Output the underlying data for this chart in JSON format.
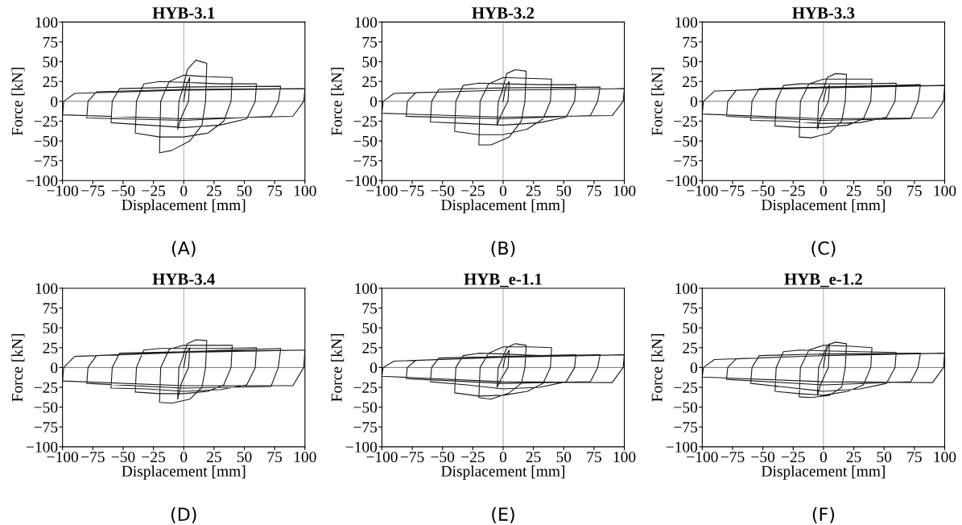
{
  "chart_data": [
    {
      "type": "line",
      "title": "HYB-3.1",
      "xlabel": "Displacement [mm]",
      "ylabel": "Force [kN]",
      "annotations": [
        "(A)"
      ],
      "xlim": [
        -100,
        100
      ],
      "ylim": [
        -100,
        100
      ],
      "xticks": [
        {
          "value": -100,
          "label": "−100"
        },
        {
          "value": -75,
          "label": "−75"
        },
        {
          "value": -50,
          "label": "−50"
        },
        {
          "value": -25,
          "label": "−25"
        },
        0,
        25,
        50,
        75,
        100
      ],
      "yticks": [
        {
          "value": -100,
          "label": "−100"
        },
        {
          "value": -75,
          "label": "−75"
        },
        {
          "value": -50,
          "label": "−50"
        },
        {
          "value": -25,
          "label": "−25"
        },
        0,
        25,
        50,
        75,
        100
      ],
      "grid": false,
      "marker": "none",
      "line_style": "solid",
      "ref_lines": [
        {
          "axis": "x",
          "value": 0,
          "color": "#999999"
        },
        {
          "axis": "y",
          "value": 0,
          "color": "#555555"
        }
      ],
      "x": [
        0,
        2,
        5,
        4,
        -2,
        -5,
        -4,
        -1,
        3,
        10,
        19,
        18,
        15,
        5,
        -10,
        -20,
        -19,
        -12,
        0,
        20,
        40,
        39,
        33,
        20,
        0,
        -20,
        -40,
        -39,
        -33,
        -20,
        0,
        30,
        60,
        59,
        52,
        30,
        0,
        -30,
        -60,
        -59,
        -53,
        0,
        80,
        78,
        72,
        0,
        -80,
        -79,
        -72,
        0,
        100,
        99,
        90,
        0,
        -100,
        -99,
        -90,
        0,
        100
      ],
      "series": [
        {
          "color": "#1a1a1a",
          "values": [
            0,
            20,
            30,
            0,
            -20,
            -35,
            0,
            15,
            40,
            52,
            48,
            0,
            -30,
            -50,
            -62,
            -65,
            0,
            25,
            33,
            31,
            30,
            0,
            -25,
            -40,
            -45,
            -45,
            -40,
            0,
            22,
            25,
            24,
            22,
            22,
            0,
            -22,
            -30,
            -33,
            -30,
            -27,
            0,
            16,
            18,
            19,
            0,
            -19,
            -24,
            -21,
            0,
            12,
            15,
            16,
            0,
            -19,
            -22,
            -17,
            0,
            10,
            14,
            16
          ]
        }
      ]
    },
    {
      "type": "line",
      "title": "HYB-3.2",
      "xlabel": "Displacement [mm]",
      "ylabel": "Force [kN]",
      "annotations": [
        "(B)"
      ],
      "xlim": [
        -100,
        100
      ],
      "ylim": [
        -100,
        100
      ],
      "xticks": [
        {
          "value": -100,
          "label": "−100"
        },
        {
          "value": -75,
          "label": "−75"
        },
        {
          "value": -50,
          "label": "−50"
        },
        {
          "value": -25,
          "label": "−25"
        },
        0,
        25,
        50,
        75,
        100
      ],
      "yticks": [
        {
          "value": -100,
          "label": "−100"
        },
        {
          "value": -75,
          "label": "−75"
        },
        {
          "value": -50,
          "label": "−50"
        },
        {
          "value": -25,
          "label": "−25"
        },
        0,
        25,
        50,
        75,
        100
      ],
      "grid": false,
      "marker": "none",
      "line_style": "solid",
      "ref_lines": [
        {
          "axis": "x",
          "value": 0,
          "color": "#999999"
        },
        {
          "axis": "y",
          "value": 0,
          "color": "#555555"
        }
      ],
      "x": [
        0,
        2,
        5,
        4,
        -2,
        -5,
        -4,
        -1,
        3,
        10,
        19,
        18,
        15,
        5,
        -10,
        -20,
        -19,
        -12,
        0,
        20,
        40,
        39,
        33,
        20,
        0,
        -20,
        -40,
        -39,
        -33,
        -20,
        0,
        30,
        60,
        59,
        52,
        30,
        0,
        -30,
        -60,
        -59,
        -53,
        0,
        80,
        78,
        72,
        0,
        -80,
        -79,
        -72,
        0,
        100,
        99,
        90,
        0,
        -100,
        -99,
        -90,
        0,
        100
      ],
      "series": [
        {
          "color": "#1a1a1a",
          "values": [
            0,
            18,
            25,
            0,
            -18,
            -30,
            0,
            12,
            35,
            40,
            38,
            0,
            -25,
            -45,
            -55,
            -55,
            0,
            22,
            30,
            29,
            28,
            0,
            -22,
            -35,
            -42,
            -42,
            -38,
            0,
            20,
            23,
            22,
            21,
            21,
            0,
            -20,
            -27,
            -30,
            -28,
            -26,
            0,
            15,
            17,
            18,
            0,
            -18,
            -22,
            -19,
            0,
            11,
            14,
            16,
            0,
            -18,
            -20,
            -15,
            0,
            10,
            14,
            16
          ]
        }
      ]
    },
    {
      "type": "line",
      "title": "HYB-3.3",
      "xlabel": "Displacement [mm]",
      "ylabel": "Force [kN]",
      "annotations": [
        "(C)"
      ],
      "xlim": [
        -100,
        100
      ],
      "ylim": [
        -100,
        100
      ],
      "xticks": [
        {
          "value": -100,
          "label": "−100"
        },
        {
          "value": -75,
          "label": "−75"
        },
        {
          "value": -50,
          "label": "−50"
        },
        {
          "value": -25,
          "label": "−25"
        },
        0,
        25,
        50,
        75,
        100
      ],
      "yticks": [
        {
          "value": -100,
          "label": "−100"
        },
        {
          "value": -75,
          "label": "−75"
        },
        {
          "value": -50,
          "label": "−50"
        },
        {
          "value": -25,
          "label": "−25"
        },
        0,
        25,
        50,
        75,
        100
      ],
      "grid": false,
      "marker": "none",
      "line_style": "solid",
      "ref_lines": [
        {
          "axis": "x",
          "value": 0,
          "color": "#999999"
        },
        {
          "axis": "y",
          "value": 0,
          "color": "#555555"
        }
      ],
      "x": [
        0,
        2,
        5,
        4,
        -2,
        -5,
        -4,
        -1,
        3,
        10,
        19,
        18,
        15,
        5,
        -10,
        -20,
        -19,
        -12,
        0,
        20,
        40,
        39,
        33,
        20,
        0,
        -20,
        -40,
        -39,
        -33,
        -20,
        0,
        30,
        60,
        59,
        52,
        30,
        0,
        -30,
        -60,
        -59,
        -53,
        0,
        80,
        78,
        72,
        0,
        -80,
        -79,
        -72,
        0,
        100,
        99,
        90,
        0,
        -100,
        -99,
        -90,
        0,
        100
      ],
      "series": [
        {
          "color": "#1a1a1a",
          "values": [
            0,
            15,
            20,
            0,
            -20,
            -35,
            0,
            10,
            30,
            35,
            34,
            0,
            -25,
            -40,
            -46,
            -45,
            0,
            22,
            28,
            28,
            28,
            0,
            -22,
            -30,
            -33,
            -33,
            -31,
            0,
            20,
            22,
            22,
            22,
            23,
            0,
            -20,
            -27,
            -28,
            -25,
            -24,
            0,
            16,
            18,
            21,
            0,
            -22,
            -24,
            -19,
            0,
            14,
            18,
            20,
            0,
            -21,
            -22,
            -16,
            0,
            13,
            17,
            20
          ]
        }
      ]
    },
    {
      "type": "line",
      "title": "HYB-3.4",
      "xlabel": "Displacement [mm]",
      "ylabel": "Force [kN]",
      "annotations": [
        "(D)"
      ],
      "xlim": [
        -100,
        100
      ],
      "ylim": [
        -100,
        100
      ],
      "xticks": [
        {
          "value": -100,
          "label": "−100"
        },
        {
          "value": -75,
          "label": "−75"
        },
        {
          "value": -50,
          "label": "−50"
        },
        {
          "value": -25,
          "label": "−25"
        },
        0,
        25,
        50,
        75,
        100
      ],
      "yticks": [
        {
          "value": -100,
          "label": "−100"
        },
        {
          "value": -75,
          "label": "−75"
        },
        {
          "value": -50,
          "label": "−50"
        },
        {
          "value": -25,
          "label": "−25"
        },
        0,
        25,
        50,
        75,
        100
      ],
      "grid": false,
      "marker": "none",
      "line_style": "solid",
      "ref_lines": [
        {
          "axis": "x",
          "value": 0,
          "color": "#999999"
        },
        {
          "axis": "y",
          "value": 0,
          "color": "#555555"
        }
      ],
      "x": [
        0,
        2,
        5,
        4,
        -2,
        -5,
        -4,
        -1,
        3,
        10,
        19,
        18,
        15,
        5,
        -10,
        -20,
        -19,
        -12,
        0,
        20,
        40,
        39,
        33,
        20,
        0,
        -20,
        -40,
        -39,
        -33,
        -20,
        0,
        30,
        60,
        59,
        52,
        30,
        0,
        -30,
        -60,
        -59,
        -53,
        0,
        80,
        78,
        72,
        0,
        -80,
        -79,
        -72,
        0,
        100,
        99,
        90,
        0,
        -100,
        -99,
        -90,
        0,
        100
      ],
      "series": [
        {
          "color": "#1a1a1a",
          "values": [
            0,
            18,
            25,
            0,
            -20,
            -40,
            0,
            12,
            30,
            35,
            34,
            0,
            -25,
            -40,
            -45,
            -44,
            0,
            23,
            28,
            28,
            28,
            0,
            -22,
            -30,
            -33,
            -33,
            -31,
            0,
            22,
            24,
            24,
            24,
            25,
            0,
            -22,
            -28,
            -30,
            -27,
            -26,
            0,
            18,
            20,
            24,
            0,
            -24,
            -26,
            -20,
            0,
            15,
            20,
            22,
            0,
            -23,
            -23,
            -17,
            0,
            14,
            19,
            22
          ]
        }
      ]
    },
    {
      "type": "line",
      "title": "HYB_e-1.1",
      "xlabel": "Displacement [mm]",
      "ylabel": "Force [kN]",
      "annotations": [
        "(E)"
      ],
      "xlim": [
        -100,
        100
      ],
      "ylim": [
        -100,
        100
      ],
      "xticks": [
        {
          "value": -100,
          "label": "−100"
        },
        {
          "value": -75,
          "label": "−75"
        },
        {
          "value": -50,
          "label": "−50"
        },
        {
          "value": -25,
          "label": "−25"
        },
        0,
        25,
        50,
        75,
        100
      ],
      "yticks": [
        {
          "value": -100,
          "label": "−100"
        },
        {
          "value": -75,
          "label": "−75"
        },
        {
          "value": -50,
          "label": "−50"
        },
        {
          "value": -25,
          "label": "−25"
        },
        0,
        25,
        50,
        75,
        100
      ],
      "grid": false,
      "marker": "none",
      "line_style": "solid",
      "ref_lines": [
        {
          "axis": "x",
          "value": 0,
          "color": "#999999"
        },
        {
          "axis": "y",
          "value": 0,
          "color": "#555555"
        }
      ],
      "x": [
        0,
        2,
        5,
        4,
        -2,
        -5,
        -4,
        -1,
        3,
        10,
        19,
        18,
        15,
        5,
        -10,
        -20,
        -19,
        -12,
        0,
        20,
        40,
        39,
        33,
        20,
        0,
        -20,
        -40,
        -39,
        -33,
        -20,
        0,
        30,
        60,
        59,
        52,
        30,
        0,
        -30,
        -60,
        -59,
        -53,
        0,
        80,
        78,
        72,
        0,
        -80,
        -79,
        -72,
        0,
        100,
        99,
        90,
        0,
        -100,
        -99,
        -90,
        0,
        100
      ],
      "series": [
        {
          "color": "#1a1a1a",
          "values": [
            0,
            15,
            22,
            0,
            -15,
            -25,
            0,
            10,
            25,
            30,
            28,
            0,
            -20,
            -32,
            -40,
            -38,
            0,
            18,
            26,
            26,
            25,
            0,
            -20,
            -30,
            -35,
            -36,
            -32,
            0,
            15,
            18,
            17,
            15,
            16,
            0,
            -18,
            -25,
            -27,
            -22,
            -18,
            0,
            12,
            14,
            16,
            0,
            -18,
            -20,
            -14,
            0,
            9,
            13,
            16,
            0,
            -19,
            -18,
            -11,
            0,
            8,
            13,
            16
          ]
        }
      ]
    },
    {
      "type": "line",
      "title": "HYB_e-1.2",
      "xlabel": "Displacement [mm]",
      "ylabel": "Force [kN]",
      "annotations": [
        "(F)"
      ],
      "xlim": [
        -100,
        100
      ],
      "ylim": [
        -100,
        100
      ],
      "xticks": [
        {
          "value": -100,
          "label": "−100"
        },
        {
          "value": -75,
          "label": "−75"
        },
        {
          "value": -50,
          "label": "−50"
        },
        {
          "value": -25,
          "label": "−25"
        },
        0,
        25,
        50,
        75,
        100
      ],
      "yticks": [
        {
          "value": -100,
          "label": "−100"
        },
        {
          "value": -75,
          "label": "−75"
        },
        {
          "value": -50,
          "label": "−50"
        },
        {
          "value": -25,
          "label": "−25"
        },
        0,
        25,
        50,
        75,
        100
      ],
      "grid": false,
      "marker": "none",
      "line_style": "solid",
      "ref_lines": [
        {
          "axis": "x",
          "value": 0,
          "color": "#999999"
        },
        {
          "axis": "y",
          "value": 0,
          "color": "#555555"
        }
      ],
      "x": [
        0,
        2,
        5,
        4,
        -2,
        -5,
        -4,
        -1,
        3,
        10,
        19,
        18,
        15,
        5,
        -10,
        -20,
        -19,
        -12,
        0,
        20,
        40,
        39,
        33,
        20,
        0,
        -20,
        -40,
        -39,
        -33,
        -20,
        0,
        30,
        60,
        59,
        52,
        30,
        0,
        -30,
        -60,
        -59,
        -53,
        0,
        80,
        78,
        72,
        0,
        -80,
        -79,
        -72,
        0,
        100,
        99,
        90,
        0,
        -100,
        -99,
        -90,
        0,
        100
      ],
      "series": [
        {
          "color": "#1a1a1a",
          "values": [
            0,
            20,
            30,
            0,
            -20,
            -35,
            0,
            12,
            28,
            32,
            30,
            0,
            -25,
            -35,
            -38,
            -37,
            0,
            22,
            28,
            27,
            25,
            0,
            -22,
            -30,
            -35,
            -33,
            -30,
            0,
            20,
            22,
            21,
            20,
            19,
            0,
            -20,
            -27,
            -30,
            -25,
            -20,
            0,
            15,
            17,
            18,
            0,
            -18,
            -22,
            -15,
            0,
            11,
            15,
            18,
            0,
            -19,
            -18,
            -12,
            0,
            10,
            15,
            18
          ]
        }
      ]
    }
  ]
}
